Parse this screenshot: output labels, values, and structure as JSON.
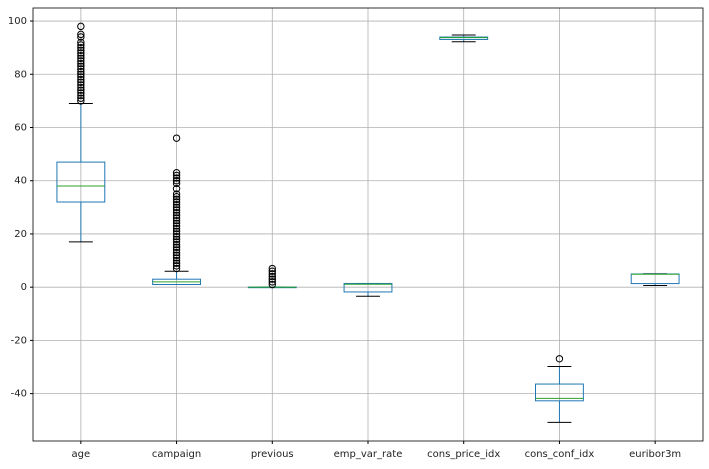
{
  "chart_data": {
    "type": "box",
    "categories": [
      "age",
      "campaign",
      "previous",
      "emp_var_rate",
      "cons_price_idx",
      "cons_conf_idx",
      "euribor3m"
    ],
    "boxes": [
      {
        "whislo": 17,
        "q1": 32,
        "med": 38,
        "q3": 47,
        "whishi": 69,
        "fliers": [
          70,
          71,
          72,
          73,
          74,
          75,
          76,
          77,
          78,
          79,
          80,
          81,
          82,
          83,
          84,
          85,
          86,
          87,
          88,
          89,
          90,
          91,
          92,
          94,
          95,
          98
        ]
      },
      {
        "whislo": 1,
        "q1": 1,
        "med": 2,
        "q3": 3,
        "whishi": 6,
        "fliers": [
          7,
          8,
          9,
          10,
          11,
          12,
          13,
          14,
          15,
          16,
          17,
          18,
          19,
          20,
          21,
          22,
          23,
          24,
          25,
          26,
          27,
          28,
          29,
          30,
          31,
          32,
          33,
          34,
          35,
          37,
          39,
          40,
          41,
          42,
          43,
          56
        ]
      },
      {
        "whislo": 0,
        "q1": 0,
        "med": 0,
        "q3": 0,
        "whishi": 0,
        "fliers": [
          1,
          2,
          3,
          4,
          5,
          6,
          7
        ]
      },
      {
        "whislo": -3.4,
        "q1": -1.8,
        "med": 1.1,
        "q3": 1.4,
        "whishi": 1.4,
        "fliers": []
      },
      {
        "whislo": 92.2,
        "q1": 93.08,
        "med": 93.75,
        "q3": 93.99,
        "whishi": 94.77,
        "fliers": []
      },
      {
        "whislo": -50.8,
        "q1": -42.7,
        "med": -41.8,
        "q3": -36.4,
        "whishi": -29.8,
        "fliers": [
          -26.9
        ]
      },
      {
        "whislo": 0.634,
        "q1": 1.344,
        "med": 4.857,
        "q3": 4.961,
        "whishi": 5.045,
        "fliers": []
      }
    ],
    "box_color": "#1f77b4",
    "median_color": "#2ca02c",
    "cap_color": "#000000",
    "flier_color": "#000000",
    "ylim": [
      -57.8,
      104.9
    ],
    "yticks": [
      -40,
      -20,
      0,
      20,
      40,
      60,
      80,
      100
    ],
    "grid": true
  }
}
